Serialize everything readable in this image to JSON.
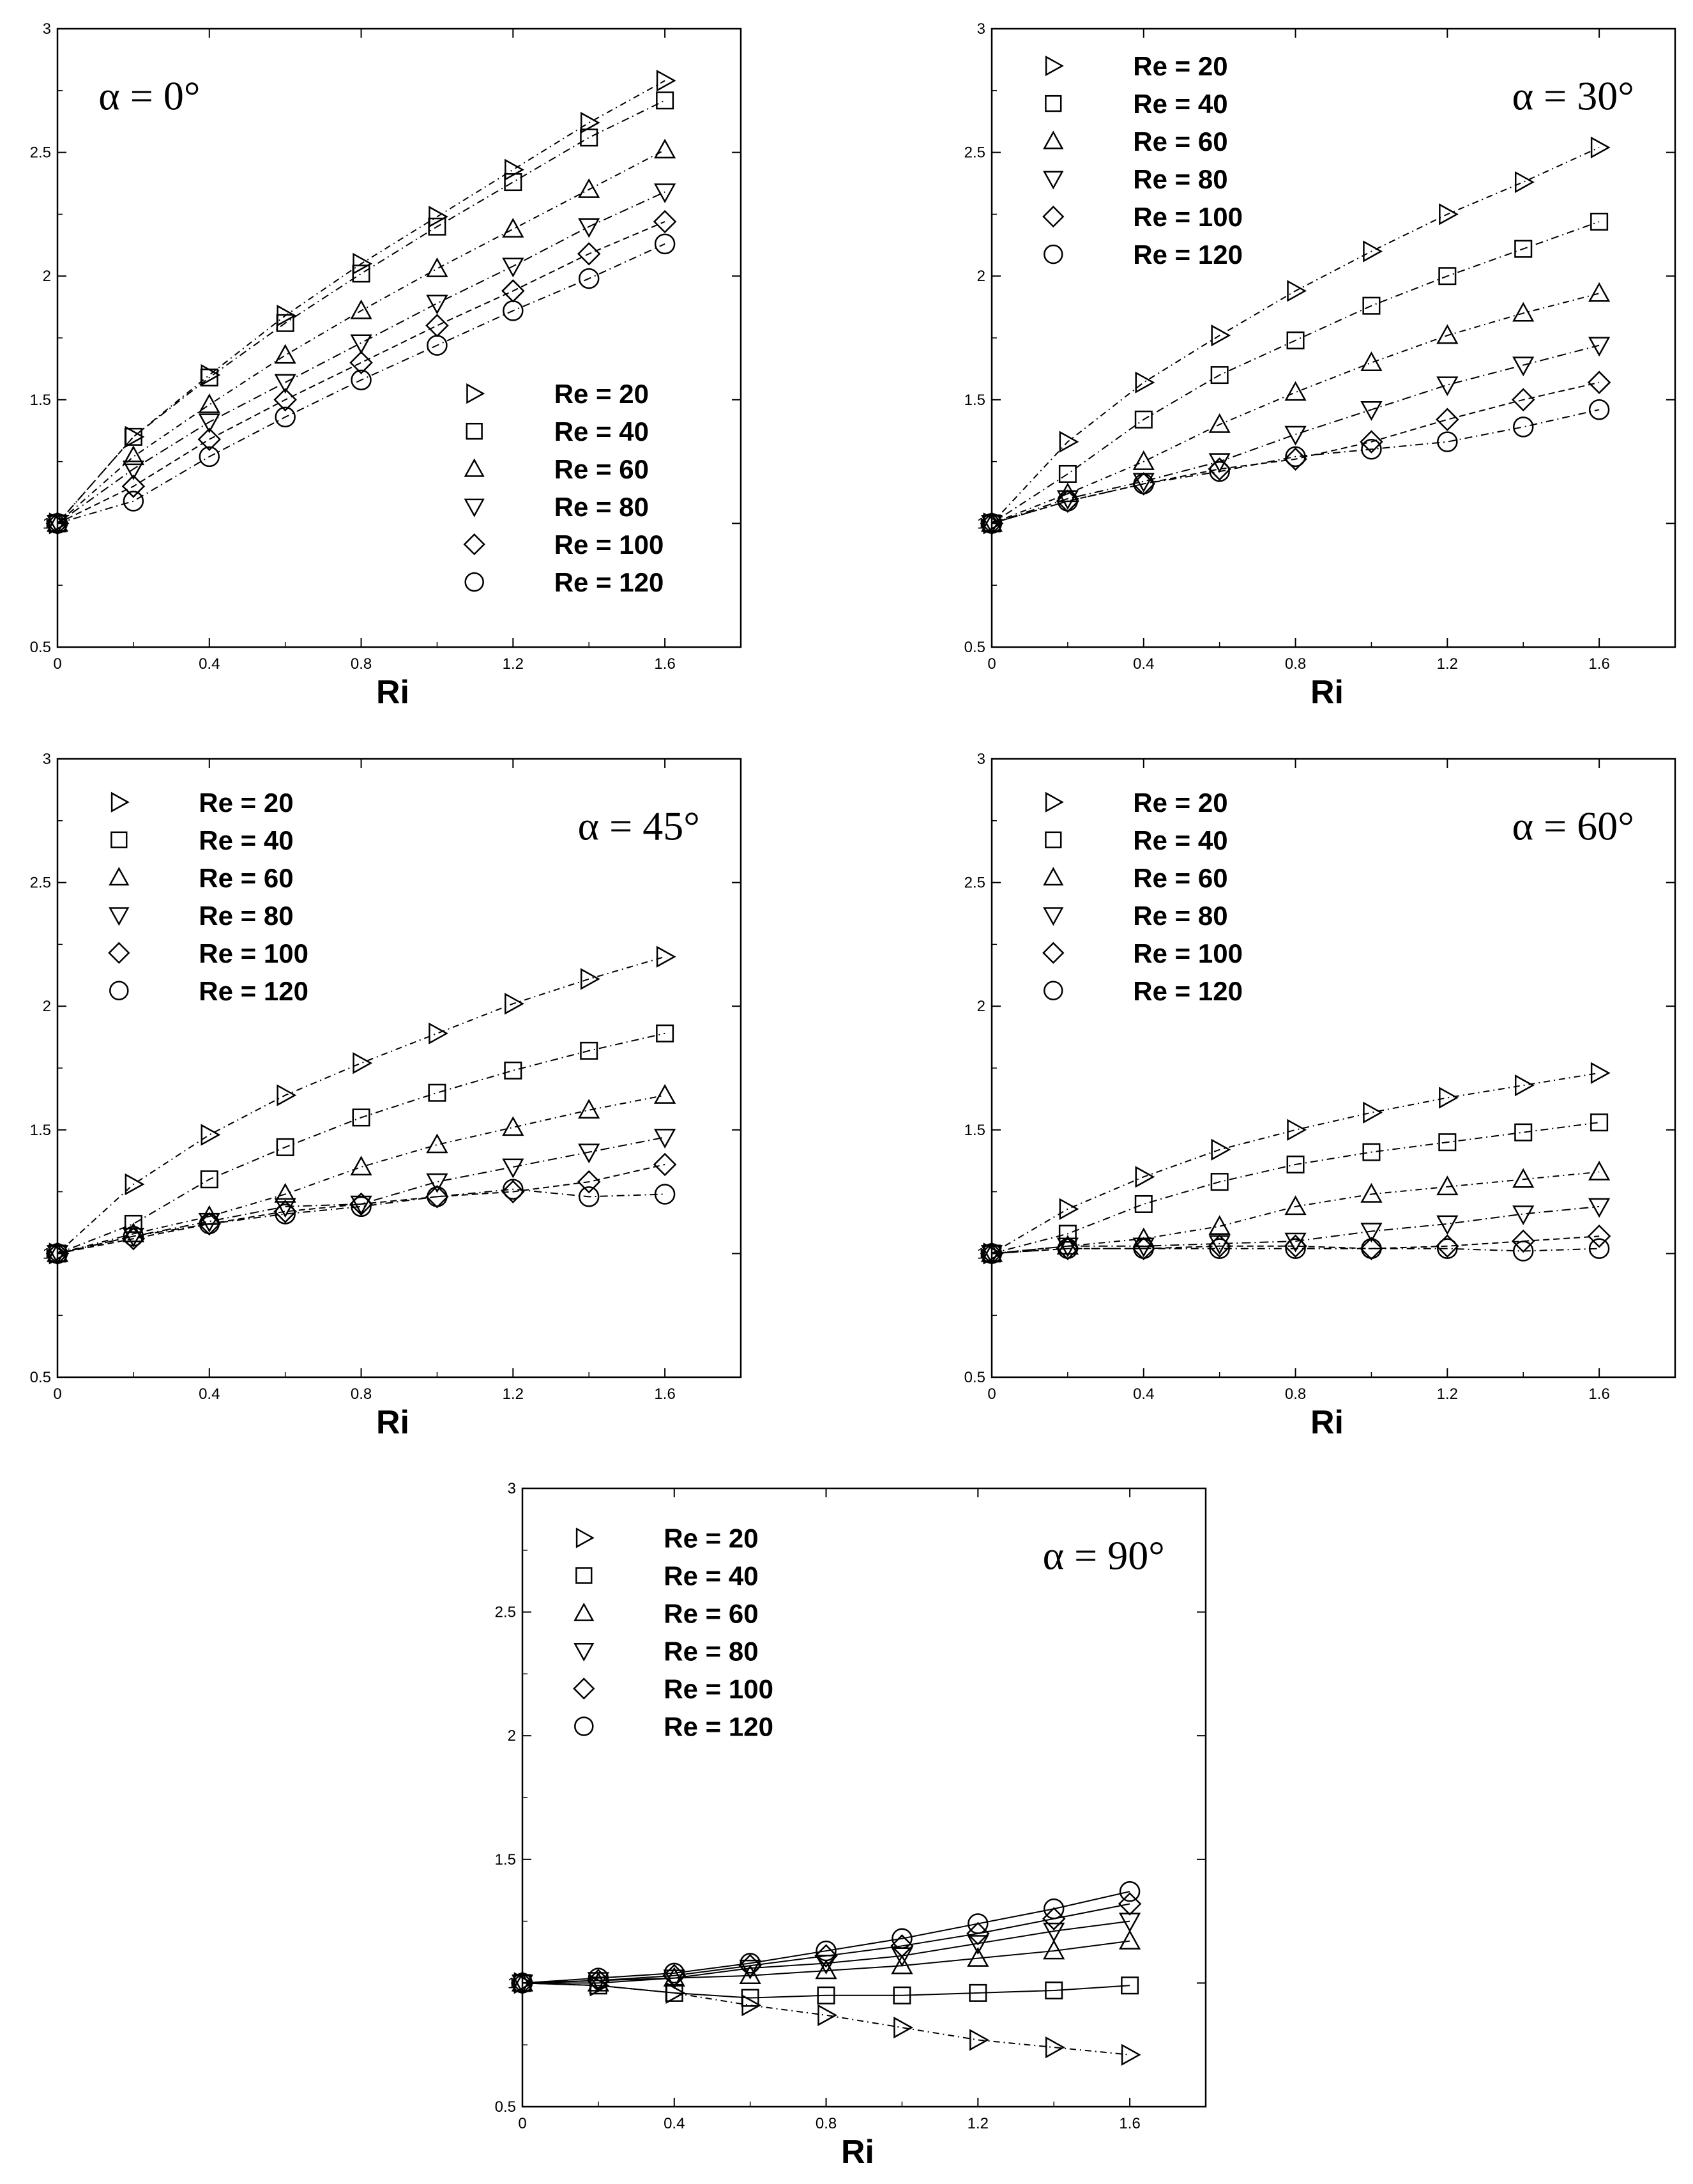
{
  "chart_data": [
    {
      "type": "line",
      "angle_label": "α = 0°",
      "xlabel": "Ri",
      "ylabel": "",
      "xlim": [
        0,
        1.8
      ],
      "ylim": [
        0.5,
        3
      ],
      "x_ticks": [
        "0",
        "0.4",
        "0.8",
        "1.2",
        "1.6"
      ],
      "y_ticks": [
        "0.5",
        "1",
        "1.5",
        "2",
        "2.5",
        "3"
      ],
      "legend_position": "lower-right",
      "x": [
        0,
        0.2,
        0.4,
        0.6,
        0.8,
        1.0,
        1.2,
        1.4,
        1.6
      ],
      "series": [
        {
          "name": "Re = 20",
          "marker": "triangle-right",
          "values": [
            1.0,
            1.35,
            1.6,
            1.84,
            2.05,
            2.24,
            2.43,
            2.62,
            2.79
          ]
        },
        {
          "name": "Re = 40",
          "marker": "square",
          "values": [
            1.0,
            1.35,
            1.59,
            1.81,
            2.01,
            2.2,
            2.38,
            2.56,
            2.71
          ]
        },
        {
          "name": "Re = 60",
          "marker": "triangle-up",
          "values": [
            1.0,
            1.27,
            1.48,
            1.68,
            1.86,
            2.03,
            2.19,
            2.35,
            2.51
          ]
        },
        {
          "name": "Re = 80",
          "marker": "triangle-down",
          "values": [
            1.0,
            1.22,
            1.41,
            1.57,
            1.73,
            1.89,
            2.04,
            2.2,
            2.34
          ]
        },
        {
          "name": "Re = 100",
          "marker": "diamond",
          "values": [
            1.0,
            1.15,
            1.34,
            1.5,
            1.65,
            1.8,
            1.94,
            2.09,
            2.22
          ]
        },
        {
          "name": "Re = 120",
          "marker": "circle",
          "values": [
            1.0,
            1.09,
            1.27,
            1.43,
            1.58,
            1.72,
            1.86,
            1.99,
            2.13
          ]
        }
      ]
    },
    {
      "type": "line",
      "angle_label": "α = 30°",
      "xlabel": "Ri",
      "ylabel": "",
      "xlim": [
        0,
        1.8
      ],
      "ylim": [
        0.5,
        3
      ],
      "x_ticks": [
        "0",
        "0.4",
        "0.8",
        "1.2",
        "1.6"
      ],
      "y_ticks": [
        "0.5",
        "1",
        "1.5",
        "2",
        "2.5",
        "3"
      ],
      "legend_position": "upper-left",
      "x": [
        0,
        0.2,
        0.4,
        0.6,
        0.8,
        1.0,
        1.2,
        1.4,
        1.6
      ],
      "series": [
        {
          "name": "Re = 20",
          "marker": "triangle-right",
          "values": [
            1.0,
            1.33,
            1.57,
            1.76,
            1.94,
            2.1,
            2.25,
            2.38,
            2.52
          ]
        },
        {
          "name": "Re = 40",
          "marker": "square",
          "values": [
            1.0,
            1.2,
            1.42,
            1.6,
            1.74,
            1.88,
            2.0,
            2.11,
            2.22
          ]
        },
        {
          "name": "Re = 60",
          "marker": "triangle-up",
          "values": [
            1.0,
            1.12,
            1.25,
            1.4,
            1.53,
            1.65,
            1.76,
            1.85,
            1.93
          ]
        },
        {
          "name": "Re = 80",
          "marker": "triangle-down",
          "values": [
            1.0,
            1.1,
            1.17,
            1.25,
            1.36,
            1.46,
            1.56,
            1.64,
            1.72
          ]
        },
        {
          "name": "Re = 100",
          "marker": "diamond",
          "values": [
            1.0,
            1.09,
            1.16,
            1.22,
            1.26,
            1.33,
            1.42,
            1.5,
            1.57
          ]
        },
        {
          "name": "Re = 120",
          "marker": "circle",
          "values": [
            1.0,
            1.09,
            1.16,
            1.21,
            1.27,
            1.3,
            1.33,
            1.39,
            1.46
          ]
        }
      ]
    },
    {
      "type": "line",
      "angle_label": "α = 45°",
      "xlabel": "Ri",
      "ylabel": "",
      "xlim": [
        0,
        1.8
      ],
      "ylim": [
        0.5,
        3
      ],
      "x_ticks": [
        "0",
        "0.4",
        "0.8",
        "1.2",
        "1.6"
      ],
      "y_ticks": [
        "0.5",
        "1",
        "1.5",
        "2",
        "2.5",
        "3"
      ],
      "legend_position": "upper-left",
      "x": [
        0,
        0.2,
        0.4,
        0.6,
        0.8,
        1.0,
        1.2,
        1.4,
        1.6
      ],
      "series": [
        {
          "name": "Re = 20",
          "marker": "triangle-right",
          "values": [
            1.0,
            1.28,
            1.48,
            1.64,
            1.77,
            1.89,
            2.01,
            2.11,
            2.2
          ]
        },
        {
          "name": "Re = 40",
          "marker": "square",
          "values": [
            1.0,
            1.12,
            1.3,
            1.43,
            1.55,
            1.65,
            1.74,
            1.82,
            1.89
          ]
        },
        {
          "name": "Re = 60",
          "marker": "triangle-up",
          "values": [
            1.0,
            1.08,
            1.15,
            1.24,
            1.35,
            1.44,
            1.51,
            1.58,
            1.64
          ]
        },
        {
          "name": "Re = 80",
          "marker": "triangle-down",
          "values": [
            1.0,
            1.07,
            1.13,
            1.19,
            1.2,
            1.29,
            1.35,
            1.41,
            1.47
          ]
        },
        {
          "name": "Re = 100",
          "marker": "diamond",
          "values": [
            1.0,
            1.06,
            1.12,
            1.17,
            1.2,
            1.23,
            1.25,
            1.29,
            1.36
          ]
        },
        {
          "name": "Re = 120",
          "marker": "circle",
          "values": [
            1.0,
            1.07,
            1.12,
            1.16,
            1.19,
            1.23,
            1.26,
            1.23,
            1.24
          ]
        }
      ]
    },
    {
      "type": "line",
      "angle_label": "α = 60°",
      "xlabel": "Ri",
      "ylabel": "",
      "xlim": [
        0,
        1.8
      ],
      "ylim": [
        0.5,
        3
      ],
      "x_ticks": [
        "0",
        "0.4",
        "0.8",
        "1.2",
        "1.6"
      ],
      "y_ticks": [
        "0.5",
        "1",
        "1.5",
        "2",
        "2.5",
        "3"
      ],
      "legend_position": "upper-left",
      "x": [
        0,
        0.2,
        0.4,
        0.6,
        0.8,
        1.0,
        1.2,
        1.4,
        1.6
      ],
      "series": [
        {
          "name": "Re = 20",
          "marker": "triangle-right",
          "values": [
            1.0,
            1.18,
            1.31,
            1.42,
            1.5,
            1.57,
            1.63,
            1.68,
            1.73
          ]
        },
        {
          "name": "Re = 40",
          "marker": "square",
          "values": [
            1.0,
            1.08,
            1.2,
            1.29,
            1.36,
            1.41,
            1.45,
            1.49,
            1.53
          ]
        },
        {
          "name": "Re = 60",
          "marker": "triangle-up",
          "values": [
            1.0,
            1.03,
            1.06,
            1.11,
            1.19,
            1.24,
            1.27,
            1.3,
            1.33
          ]
        },
        {
          "name": "Re = 80",
          "marker": "triangle-down",
          "values": [
            1.0,
            1.03,
            1.03,
            1.04,
            1.05,
            1.09,
            1.12,
            1.16,
            1.19
          ]
        },
        {
          "name": "Re = 100",
          "marker": "diamond",
          "values": [
            1.0,
            1.02,
            1.02,
            1.03,
            1.03,
            1.02,
            1.03,
            1.05,
            1.07
          ]
        },
        {
          "name": "Re = 120",
          "marker": "circle",
          "values": [
            1.0,
            1.02,
            1.02,
            1.02,
            1.02,
            1.02,
            1.02,
            1.01,
            1.02
          ]
        }
      ]
    },
    {
      "type": "line",
      "angle_label": "α = 90°",
      "xlabel": "Ri",
      "ylabel": "",
      "xlim": [
        0,
        1.8
      ],
      "ylim": [
        0.5,
        3
      ],
      "x_ticks": [
        "0",
        "0.4",
        "0.8",
        "1.2",
        "1.6"
      ],
      "y_ticks": [
        "0.5",
        "1",
        "1.5",
        "2",
        "2.5",
        "3"
      ],
      "legend_position": "upper-left",
      "x": [
        0,
        0.2,
        0.4,
        0.6,
        0.8,
        1.0,
        1.2,
        1.4,
        1.6
      ],
      "series": [
        {
          "name": "Re = 20",
          "marker": "triangle-right",
          "values": [
            1.0,
            0.99,
            0.96,
            0.91,
            0.87,
            0.82,
            0.77,
            0.74,
            0.71
          ]
        },
        {
          "name": "Re = 40",
          "marker": "square",
          "values": [
            1.0,
            0.99,
            0.96,
            0.94,
            0.95,
            0.95,
            0.96,
            0.97,
            0.99
          ]
        },
        {
          "name": "Re = 60",
          "marker": "triangle-up",
          "values": [
            1.0,
            1.0,
            1.02,
            1.03,
            1.05,
            1.07,
            1.1,
            1.13,
            1.17
          ]
        },
        {
          "name": "Re = 80",
          "marker": "triangle-down",
          "values": [
            1.0,
            1.01,
            1.02,
            1.06,
            1.08,
            1.11,
            1.16,
            1.21,
            1.25
          ]
        },
        {
          "name": "Re = 100",
          "marker": "diamond",
          "values": [
            1.0,
            1.01,
            1.03,
            1.07,
            1.11,
            1.15,
            1.2,
            1.26,
            1.32
          ]
        },
        {
          "name": "Re = 120",
          "marker": "circle",
          "values": [
            1.0,
            1.02,
            1.04,
            1.08,
            1.13,
            1.18,
            1.24,
            1.3,
            1.37
          ]
        }
      ]
    }
  ]
}
